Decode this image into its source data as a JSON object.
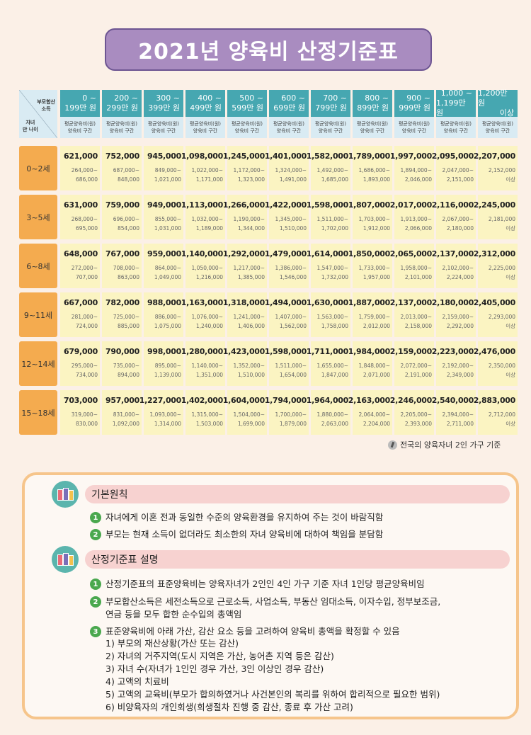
{
  "title": "2021년 양육비 산정기준표",
  "corner": {
    "income_l1": "부모합산",
    "income_l2": "소득",
    "age_l1": "자녀",
    "age_l2": "만 나이"
  },
  "col_sub_l1": "평균양육비(원)",
  "col_sub_l2": "양육비 구간",
  "income_brackets": [
    [
      "0 ~",
      "199만 원"
    ],
    [
      "200 ~",
      "299만 원"
    ],
    [
      "300 ~",
      "399만 원"
    ],
    [
      "400 ~",
      "499만 원"
    ],
    [
      "500 ~",
      "599만 원"
    ],
    [
      "600 ~",
      "699만 원"
    ],
    [
      "700 ~",
      "799만 원"
    ],
    [
      "800 ~",
      "899만 원"
    ],
    [
      "900 ~",
      "999만 원"
    ],
    [
      "1,000 ~",
      "1,199만 원"
    ],
    [
      "1,200만 원",
      "이상"
    ]
  ],
  "rows": [
    {
      "age": "0~2세",
      "amounts": [
        "621,000",
        "752,000",
        "945,000",
        "1,098,000",
        "1,245,000",
        "1,401,000",
        "1,582,000",
        "1,789,000",
        "1,997,000",
        "2,095,000",
        "2,207,000"
      ],
      "ranges": [
        [
          "264,000~",
          "686,000"
        ],
        [
          "687,000~",
          "848,000"
        ],
        [
          "849,000~",
          "1,021,000"
        ],
        [
          "1,022,000~",
          "1,171,000"
        ],
        [
          "1,172,000~",
          "1,323,000"
        ],
        [
          "1,324,000~",
          "1,491,000"
        ],
        [
          "1,492,000~",
          "1,685,000"
        ],
        [
          "1,686,000~",
          "1,893,000"
        ],
        [
          "1,894,000~",
          "2,046,000"
        ],
        [
          "2,047,000~",
          "2,151,000"
        ],
        [
          "2,152,000",
          "이상"
        ]
      ]
    },
    {
      "age": "3~5세",
      "amounts": [
        "631,000",
        "759,000",
        "949,000",
        "1,113,000",
        "1,266,000",
        "1,422,000",
        "1,598,000",
        "1,807,000",
        "2,017,000",
        "2,116,000",
        "2,245,000"
      ],
      "ranges": [
        [
          "268,000~",
          "695,000"
        ],
        [
          "696,000~",
          "854,000"
        ],
        [
          "855,000~",
          "1,031,000"
        ],
        [
          "1,032,000~",
          "1,189,000"
        ],
        [
          "1,190,000~",
          "1,344,000"
        ],
        [
          "1,345,000~",
          "1,510,000"
        ],
        [
          "1,511,000~",
          "1,702,000"
        ],
        [
          "1,703,000~",
          "1,912,000"
        ],
        [
          "1,913,000~",
          "2,066,000"
        ],
        [
          "2,067,000~",
          "2,180,000"
        ],
        [
          "2,181,000",
          "이상"
        ]
      ]
    },
    {
      "age": "6~8세",
      "amounts": [
        "648,000",
        "767,000",
        "959,000",
        "1,140,000",
        "1,292,000",
        "1,479,000",
        "1,614,000",
        "1,850,000",
        "2,065,000",
        "2,137,000",
        "2,312,000"
      ],
      "ranges": [
        [
          "272,000~",
          "707,000"
        ],
        [
          "708,000~",
          "863,000"
        ],
        [
          "864,000~",
          "1,049,000"
        ],
        [
          "1,050,000~",
          "1,216,000"
        ],
        [
          "1,217,000~",
          "1,385,000"
        ],
        [
          "1,386,000~",
          "1,546,000"
        ],
        [
          "1,547,000~",
          "1,732,000"
        ],
        [
          "1,733,000~",
          "1,957,000"
        ],
        [
          "1,958,000~",
          "2,101,000"
        ],
        [
          "2,102,000~",
          "2,224,000"
        ],
        [
          "2,225,000",
          "이상"
        ]
      ]
    },
    {
      "age": "9~11세",
      "amounts": [
        "667,000",
        "782,000",
        "988,000",
        "1,163,000",
        "1,318,000",
        "1,494,000",
        "1,630,000",
        "1,887,000",
        "2,137,000",
        "2,180,000",
        "2,405,000"
      ],
      "ranges": [
        [
          "281,000~",
          "724,000"
        ],
        [
          "725,000~",
          "885,000"
        ],
        [
          "886,000~",
          "1,075,000"
        ],
        [
          "1,076,000~",
          "1,240,000"
        ],
        [
          "1,241,000~",
          "1,406,000"
        ],
        [
          "1,407,000~",
          "1,562,000"
        ],
        [
          "1,563,000~",
          "1,758,000"
        ],
        [
          "1,759,000~",
          "2,012,000"
        ],
        [
          "2,013,000~",
          "2,158,000"
        ],
        [
          "2,159,000~",
          "2,292,000"
        ],
        [
          "2,293,000",
          "이상"
        ]
      ]
    },
    {
      "age": "12~14세",
      "amounts": [
        "679,000",
        "790,000",
        "998,000",
        "1,280,000",
        "1,423,000",
        "1,598,000",
        "1,711,000",
        "1,984,000",
        "2,159,000",
        "2,223,000",
        "2,476,000"
      ],
      "ranges": [
        [
          "295,000~",
          "734,000"
        ],
        [
          "735,000~",
          "894,000"
        ],
        [
          "895,000~",
          "1,139,000"
        ],
        [
          "1,140,000~",
          "1,351,000"
        ],
        [
          "1,352,000~",
          "1,510,000"
        ],
        [
          "1,511,000~",
          "1,654,000"
        ],
        [
          "1,655,000~",
          "1,847,000"
        ],
        [
          "1,848,000~",
          "2,071,000"
        ],
        [
          "2,072,000~",
          "2,191,000"
        ],
        [
          "2,192,000~",
          "2,349,000"
        ],
        [
          "2,350,000",
          "이상"
        ]
      ]
    },
    {
      "age": "15~18세",
      "amounts": [
        "703,000",
        "957,000",
        "1,227,000",
        "1,402,000",
        "1,604,000",
        "1,794,000",
        "1,964,000",
        "2,163,000",
        "2,246,000",
        "2,540,000",
        "2,883,000"
      ],
      "ranges": [
        [
          "319,000~",
          "830,000"
        ],
        [
          "831,000~",
          "1,092,000"
        ],
        [
          "1,093,000~",
          "1,314,000"
        ],
        [
          "1,315,000~",
          "1,503,000"
        ],
        [
          "1,504,000~",
          "1,699,000"
        ],
        [
          "1,700,000~",
          "1,879,000"
        ],
        [
          "1,880,000~",
          "2,063,000"
        ],
        [
          "2,064,000~",
          "2,204,000"
        ],
        [
          "2,205,000~",
          "2,393,000"
        ],
        [
          "2,394,000~",
          "2,711,000"
        ],
        [
          "2,712,000",
          "이상"
        ]
      ]
    }
  ],
  "basis_note": "전국의 양육자녀 2인 가구 기준",
  "principles": {
    "title": "기본원칙",
    "items": [
      "자녀에게 이혼 전과 동일한 수준의 양육환경을 유지하여 주는 것이 바람직함",
      "부모는 현재 소득이 없더라도 최소한의 자녀 양육비에 대하여 책임을 분담함"
    ]
  },
  "explanation": {
    "title": "산정기준표 설명",
    "item1": "산정기준표의 표준양육비는 양육자녀가 2인인 4인 가구 기준 자녀 1인당 평균양육비임",
    "item2_l1": "부모합산소득은 세전소득으로 근로소득, 사업소득, 부동산 임대소득, 이자수입, 정부보조금,",
    "item2_l2": "연금 등을 모두 합한 순수입의 총액임",
    "item3": "표준양육비에 아래 가산, 감산 요소 등을 고려하여 양육비 총액을 확정할 수 있음",
    "factors": [
      "1) 부모의 재산상황(가산 또는 감산)",
      "2) 자녀의 거주지역(도시 지역은 가산, 농어촌 지역 등은 감산)",
      "3) 자녀 수(자녀가 1인인 경우 가산, 3인 이상인 경우 감산)",
      "4) 고액의 치료비",
      "5) 고액의 교육비(부모가 합의하였거나 사건본인의 복리를 위하여 합리적으로 필요한 범위)",
      "6) 비양육자의 개인회생(회생절차 진행 중 감산, 종료 후 가산 고려)"
    ]
  },
  "colors": {
    "header": "#46a7b1",
    "age": "#f4ab4f",
    "cell": "#fbf4c2",
    "title": "#a98cc0",
    "bullet": "#4aa84e"
  }
}
